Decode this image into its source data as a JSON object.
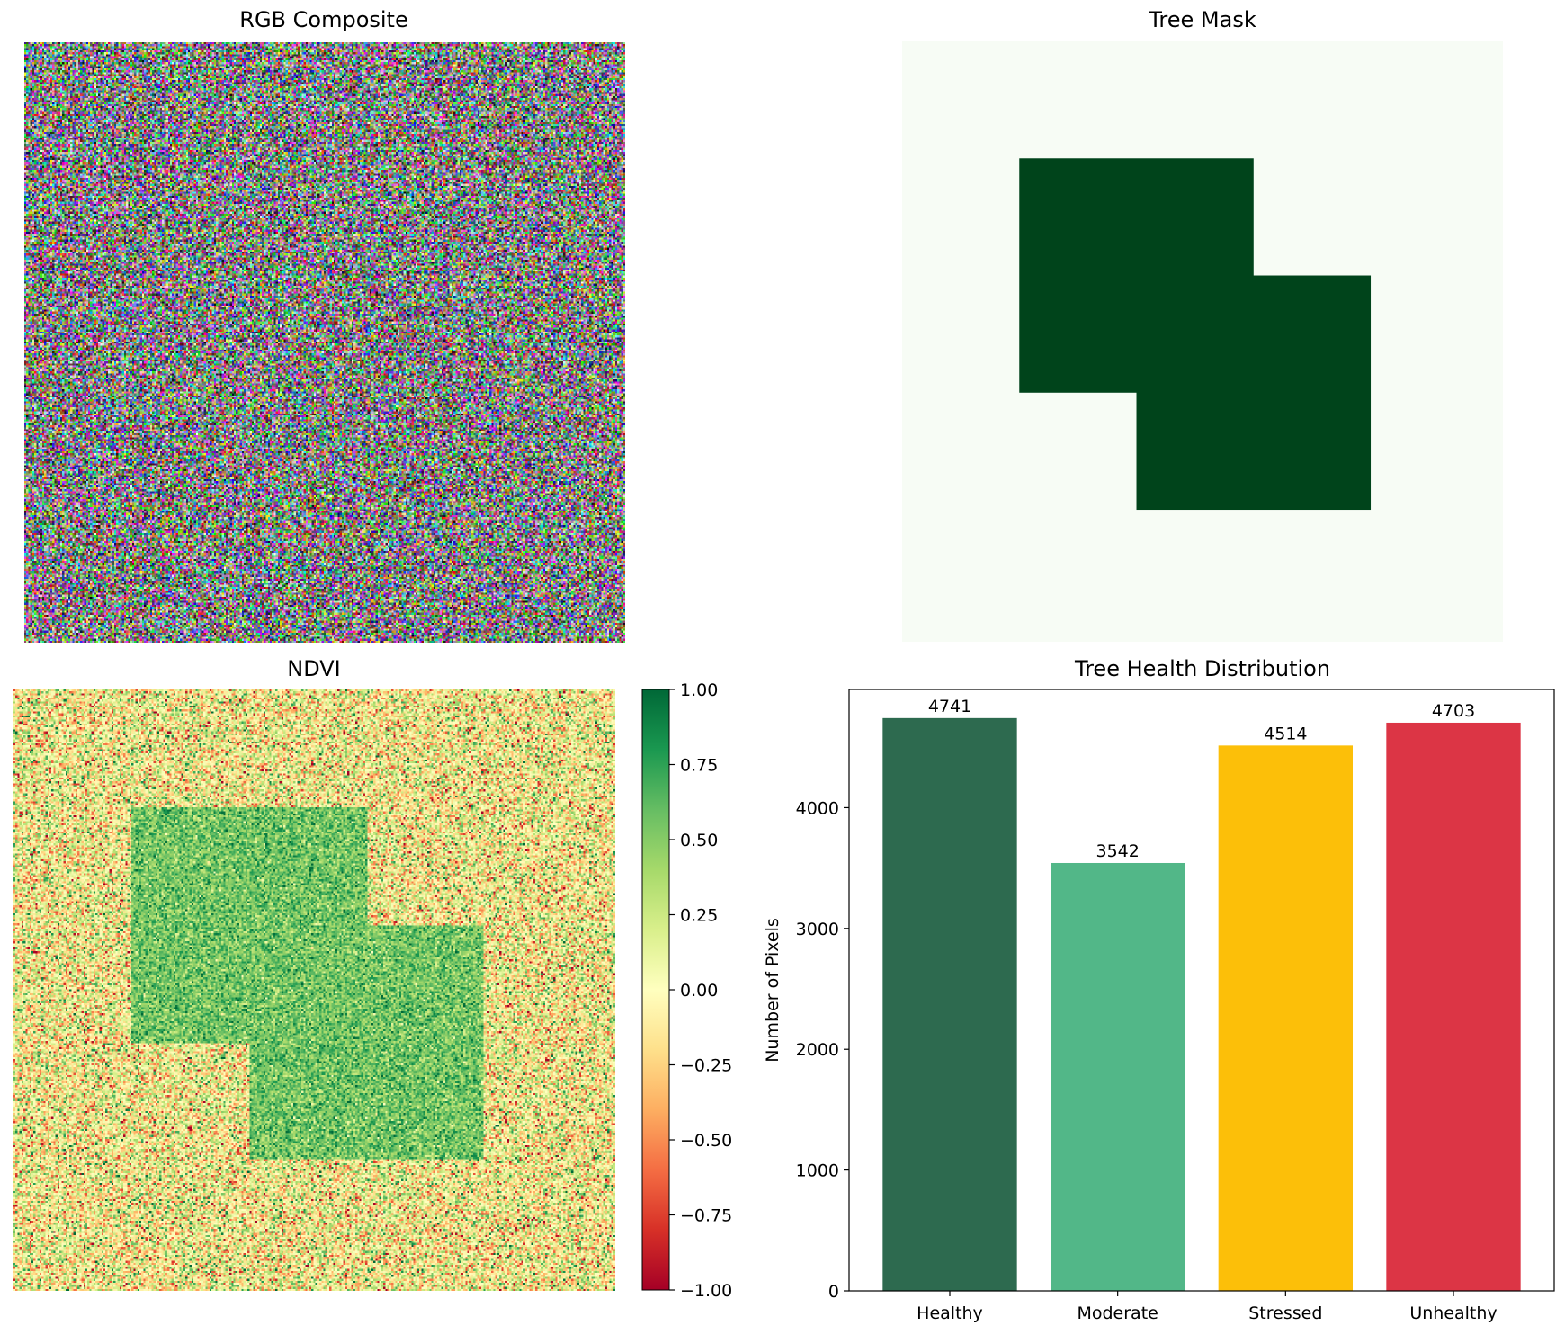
{
  "chart_data": [
    {
      "type": "heatmap",
      "title": "RGB Composite",
      "content": "random RGB noise image",
      "axes": "off"
    },
    {
      "type": "heatmap",
      "title": "Tree Mask",
      "colormap": "Greens",
      "colors": {
        "background": "#f7fcf5",
        "tree": "#00441b"
      },
      "axes": "off"
    },
    {
      "type": "heatmap",
      "title": "NDVI",
      "colormap": "RdYlGn",
      "colorbar": {
        "min": -1.0,
        "max": 1.0,
        "ticks": [
          "1.00",
          "0.75",
          "0.50",
          "0.25",
          "0.00",
          "−0.25",
          "−0.50",
          "−0.75",
          "−1.00"
        ]
      },
      "axes": "off"
    },
    {
      "type": "bar",
      "title": "Tree Health Distribution",
      "categories": [
        "Healthy",
        "Moderate",
        "Stressed",
        "Unhealthy"
      ],
      "values": [
        4741,
        3542,
        4514,
        4703
      ],
      "colors": [
        "#2d6a4f",
        "#52b788",
        "#fcbf09",
        "#dc3545"
      ],
      "ylabel": "Number of Pixels",
      "ylim": [
        0,
        4978
      ],
      "yticks": [
        0,
        1000,
        2000,
        3000,
        4000
      ],
      "grid": false
    }
  ]
}
